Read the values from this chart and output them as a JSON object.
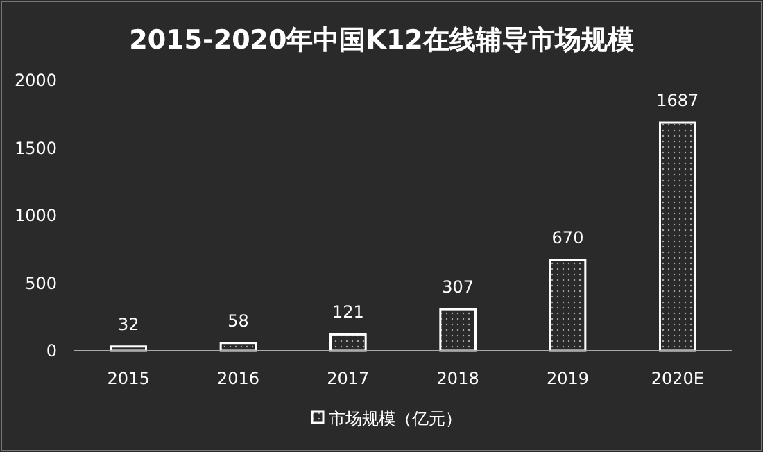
{
  "chart_data": {
    "type": "bar",
    "title": "2015-2020年中国K12在线辅导市场规模",
    "categories": [
      "2015",
      "2016",
      "2017",
      "2018",
      "2019",
      "2020E"
    ],
    "series": [
      {
        "name": "市场规模（亿元）",
        "color": "#ffffff",
        "values": [
          32,
          58,
          121,
          307,
          670,
          1687
        ]
      }
    ],
    "ylim": [
      0,
      2000
    ],
    "yticks": [
      0,
      500,
      1000,
      1500,
      2000
    ],
    "grid": false,
    "legend": "bottom",
    "data_labels": true
  }
}
